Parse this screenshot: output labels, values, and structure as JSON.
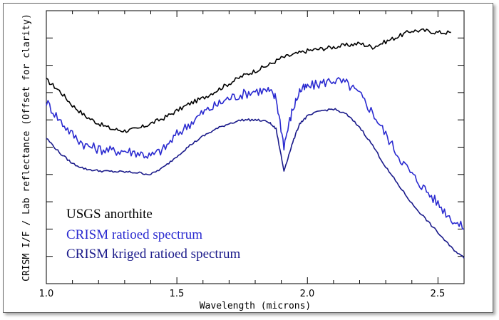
{
  "chart_data": {
    "type": "line",
    "xlabel": "Wavelength (microns)",
    "ylabel": "CRISM I/F  /  Lab reflectance (Offset for clarity)",
    "xlim": [
      1.0,
      2.6
    ],
    "x_ticks": [
      "1.0",
      "1.5",
      "2.0",
      "2.5"
    ],
    "grid": false,
    "legend_placement": "bottom-left",
    "series": [
      {
        "name": "USGS anorthite",
        "color": "#000000",
        "x": [
          1.0,
          1.05,
          1.1,
          1.15,
          1.2,
          1.25,
          1.3,
          1.35,
          1.4,
          1.45,
          1.5,
          1.55,
          1.6,
          1.65,
          1.7,
          1.75,
          1.8,
          1.85,
          1.9,
          1.95,
          2.0,
          2.05,
          2.1,
          2.15,
          2.2,
          2.25,
          2.3,
          2.35,
          2.4,
          2.45,
          2.5,
          2.55
        ],
        "y": [
          0.71,
          0.68,
          0.64,
          0.61,
          0.59,
          0.575,
          0.57,
          0.575,
          0.59,
          0.605,
          0.625,
          0.645,
          0.66,
          0.68,
          0.7,
          0.72,
          0.735,
          0.75,
          0.77,
          0.78,
          0.79,
          0.795,
          0.8,
          0.805,
          0.81,
          0.8,
          0.815,
          0.83,
          0.845,
          0.845,
          0.84,
          0.84
        ]
      },
      {
        "name": "CRISM ratioed spectrum",
        "color": "#2a2ad0",
        "x": [
          1.0,
          1.05,
          1.1,
          1.15,
          1.2,
          1.25,
          1.3,
          1.35,
          1.4,
          1.45,
          1.5,
          1.55,
          1.6,
          1.65,
          1.7,
          1.75,
          1.8,
          1.85,
          1.88,
          1.91,
          1.94,
          1.97,
          2.0,
          2.05,
          2.1,
          2.15,
          2.2,
          2.25,
          2.3,
          2.35,
          2.4,
          2.45,
          2.5,
          2.55,
          2.6
        ],
        "y": [
          0.65,
          0.6,
          0.56,
          0.53,
          0.52,
          0.515,
          0.515,
          0.51,
          0.5,
          0.52,
          0.56,
          0.59,
          0.62,
          0.64,
          0.66,
          0.67,
          0.68,
          0.68,
          0.66,
          0.53,
          0.62,
          0.68,
          0.69,
          0.7,
          0.71,
          0.7,
          0.67,
          0.62,
          0.56,
          0.5,
          0.45,
          0.41,
          0.37,
          0.33,
          0.3
        ]
      },
      {
        "name": "CRISM kriged ratioed spectrum",
        "color": "#1a1a8a",
        "x": [
          1.0,
          1.05,
          1.1,
          1.15,
          1.2,
          1.25,
          1.3,
          1.35,
          1.4,
          1.45,
          1.5,
          1.55,
          1.6,
          1.65,
          1.7,
          1.75,
          1.8,
          1.85,
          1.88,
          1.91,
          1.94,
          1.97,
          2.0,
          2.05,
          2.1,
          2.15,
          2.2,
          2.25,
          2.3,
          2.35,
          2.4,
          2.45,
          2.5,
          2.55,
          2.6
        ],
        "y": [
          0.55,
          0.51,
          0.48,
          0.465,
          0.46,
          0.458,
          0.457,
          0.455,
          0.45,
          0.47,
          0.5,
          0.53,
          0.555,
          0.575,
          0.59,
          0.6,
          0.6,
          0.595,
          0.575,
          0.46,
          0.53,
          0.59,
          0.61,
          0.625,
          0.63,
          0.615,
          0.58,
          0.53,
          0.47,
          0.42,
          0.37,
          0.33,
          0.29,
          0.25,
          0.22
        ]
      }
    ],
    "legend": [
      {
        "label": "USGS anorthite",
        "color": "#000000"
      },
      {
        "label": "CRISM ratioed spectrum",
        "color": "#2a2ad0"
      },
      {
        "label": "CRISM kriged ratioed spectrum",
        "color": "#1a1a8a"
      }
    ]
  }
}
